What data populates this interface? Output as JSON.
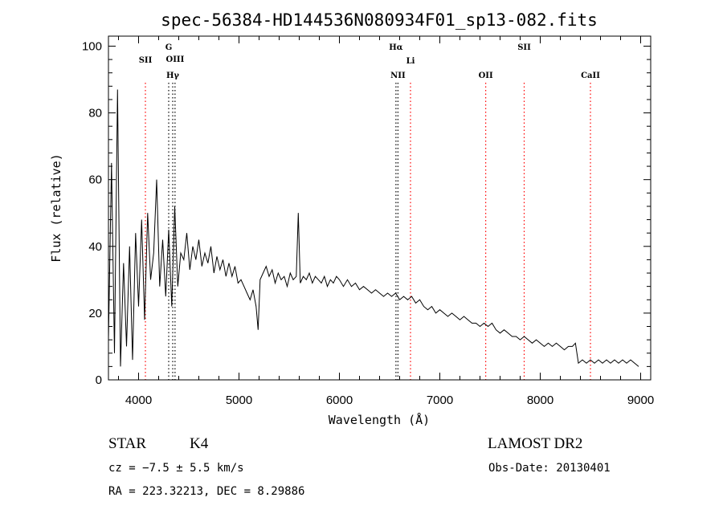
{
  "chart_data": {
    "type": "line",
    "title": "spec-56384-HD144536N080934F01_sp13-082.fits",
    "xlabel": "Wavelength (Å)",
    "ylabel": "Flux (relative)",
    "xlim": [
      3700,
      9100
    ],
    "ylim": [
      0,
      103
    ],
    "xticks": [
      4000,
      5000,
      6000,
      7000,
      8000,
      9000
    ],
    "yticks": [
      0,
      20,
      40,
      60,
      80,
      100
    ],
    "grid": false,
    "series": [
      {
        "x": [
          3700,
          3730,
          3760,
          3790,
          3820,
          3850,
          3880,
          3910,
          3940,
          3970,
          4000,
          4030,
          4060,
          4090,
          4120,
          4150,
          4180,
          4210,
          4240,
          4270,
          4300,
          4330,
          4360,
          4390,
          4420,
          4450,
          4480,
          4510,
          4540,
          4570,
          4600,
          4630,
          4660,
          4690,
          4720,
          4750,
          4780,
          4810,
          4840,
          4870,
          4900,
          4930,
          4960,
          4990,
          5020,
          5050,
          5080,
          5110,
          5140,
          5170,
          5190,
          5210,
          5240,
          5270,
          5300,
          5330,
          5360,
          5390,
          5420,
          5450,
          5480,
          5510,
          5540,
          5570,
          5590,
          5610,
          5640,
          5670,
          5700,
          5730,
          5760,
          5790,
          5820,
          5850,
          5880,
          5910,
          5940,
          5970,
          6000,
          6040,
          6080,
          6120,
          6160,
          6200,
          6240,
          6280,
          6320,
          6360,
          6400,
          6440,
          6480,
          6520,
          6560,
          6600,
          6640,
          6680,
          6720,
          6760,
          6800,
          6840,
          6880,
          6920,
          6960,
          7000,
          7040,
          7080,
          7120,
          7160,
          7200,
          7240,
          7280,
          7320,
          7360,
          7400,
          7440,
          7480,
          7520,
          7560,
          7600,
          7640,
          7680,
          7720,
          7760,
          7800,
          7840,
          7880,
          7920,
          7960,
          8000,
          8040,
          8080,
          8120,
          8160,
          8200,
          8240,
          8280,
          8320,
          8350,
          8380,
          8420,
          8460,
          8500,
          8540,
          8580,
          8620,
          8660,
          8700,
          8740,
          8780,
          8820,
          8860,
          8900,
          8940,
          8980
        ],
        "y": [
          12,
          65,
          8,
          87,
          4,
          35,
          10,
          40,
          6,
          44,
          22,
          48,
          18,
          50,
          30,
          38,
          60,
          28,
          42,
          25,
          45,
          22,
          52,
          28,
          38,
          36,
          44,
          33,
          40,
          36,
          42,
          34,
          38,
          35,
          40,
          32,
          37,
          33,
          36,
          31,
          35,
          31,
          34,
          29,
          30,
          28,
          26,
          24,
          27,
          22,
          15,
          30,
          32,
          34,
          31,
          33,
          29,
          32,
          30,
          31,
          28,
          32,
          30,
          31,
          50,
          29,
          31,
          30,
          32,
          29,
          31,
          30,
          29,
          31,
          28,
          30,
          29,
          31,
          30,
          28,
          30,
          28,
          29,
          27,
          28,
          27,
          26,
          27,
          26,
          25,
          26,
          25,
          26,
          24,
          25,
          24,
          25,
          23,
          24,
          22,
          21,
          22,
          20,
          21,
          20,
          19,
          20,
          19,
          18,
          19,
          18,
          17,
          17,
          16,
          17,
          16,
          17,
          15,
          14,
          15,
          14,
          13,
          13,
          12,
          13,
          12,
          11,
          12,
          11,
          10,
          11,
          10,
          11,
          10,
          9,
          10,
          10,
          11,
          5,
          6,
          5,
          6,
          5,
          6,
          5,
          6,
          5,
          6,
          5,
          6,
          5,
          6,
          5,
          4
        ]
      }
    ],
    "line_markers": [
      {
        "wavelength": 4068,
        "labels": [
          "SII"
        ],
        "color": "#ff0000"
      },
      {
        "wavelength": 4300,
        "labels": [
          "G"
        ],
        "color": "#000000"
      },
      {
        "wavelength": 4340,
        "labels": [
          "Hγ"
        ],
        "color": "#000000"
      },
      {
        "wavelength": 4363,
        "labels": [
          "OIII"
        ],
        "color": "#000000"
      },
      {
        "wavelength": 6563,
        "labels": [
          "Hα"
        ],
        "color": "#000000"
      },
      {
        "wavelength": 6583,
        "labels": [
          "NII"
        ],
        "color": "#000000"
      },
      {
        "wavelength": 6708,
        "labels": [
          "Li"
        ],
        "color": "#ff0000"
      },
      {
        "wavelength": 7457,
        "labels": [
          "OII"
        ],
        "color": "#ff0000"
      },
      {
        "wavelength": 7840,
        "labels": [
          "SII"
        ],
        "color": "#ff0000"
      },
      {
        "wavelength": 8500,
        "labels": [
          "CaII"
        ],
        "color": "#ff0000"
      }
    ]
  },
  "info": {
    "class_label": "STAR",
    "subclass": "K4",
    "survey": "LAMOST DR2",
    "cz": "cz = −7.5 ± 5.5 km/s",
    "obs_date": "Obs-Date: 20130401",
    "radec": "RA = 223.32213, DEC =   8.29886"
  },
  "colors": {
    "spectrum": "#000000",
    "marker_red": "#ff0000",
    "marker_black": "#000000"
  }
}
